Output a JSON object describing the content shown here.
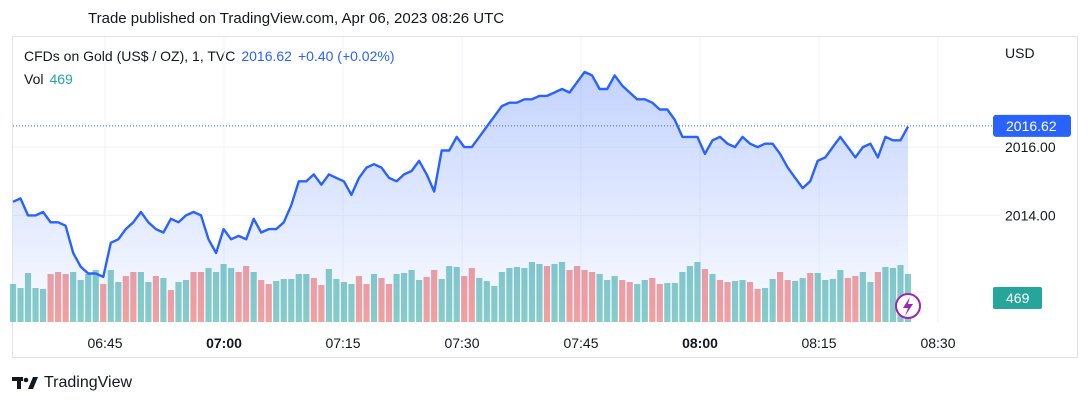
{
  "header": {
    "published": "Trade published on TradingView.com, Apr 06, 2023 08:26 UTC"
  },
  "legend": {
    "symbol": "CFDs on Gold (US$ / OZ), 1, TVC",
    "price": "2016.62",
    "change": "+0.40 (+0.02%)",
    "vol_label": "Vol",
    "vol_value": "469"
  },
  "axis": {
    "currency": "USD",
    "last_price_label": "2016.62",
    "last_volume_label": "469"
  },
  "brand": {
    "name": "TradingView"
  },
  "colors": {
    "line": "#2962ff",
    "vol_up": "#26a69a",
    "vol_down": "#ef5350",
    "price_tag": "#2962ff",
    "vol_tag": "#26a69a"
  },
  "chart_data": {
    "type": "line",
    "title": "CFDs on Gold (US$ / OZ), 1, TVC",
    "x_ticks": [
      {
        "label": "06:45",
        "bold": false
      },
      {
        "label": "07:00",
        "bold": true
      },
      {
        "label": "07:15",
        "bold": false
      },
      {
        "label": "07:30",
        "bold": false
      },
      {
        "label": "07:45",
        "bold": false
      },
      {
        "label": "08:00",
        "bold": true
      },
      {
        "label": "08:15",
        "bold": false
      },
      {
        "label": "08:30",
        "bold": false
      }
    ],
    "y_ticks": [
      "2016.00",
      "2014.00"
    ],
    "ylim": [
      2011.7,
      2018.55
    ],
    "x_start": "06:35",
    "x_end": "08:33",
    "series": [
      {
        "price": [
          2014.4,
          2014.5,
          2014.0,
          2014.0,
          2014.1,
          2013.8,
          2013.8,
          2013.7,
          2012.9,
          2012.5,
          2012.3,
          2012.3,
          2012.2,
          2013.2,
          2013.3,
          2013.6,
          2013.8,
          2014.1,
          2013.8,
          2013.6,
          2013.5,
          2013.9,
          2013.8,
          2014.0,
          2014.1,
          2014.0,
          2013.3,
          2012.9,
          2013.6,
          2013.3,
          2013.4,
          2013.3,
          2013.9,
          2013.5,
          2013.6,
          2013.6,
          2013.8,
          2014.3,
          2015.0,
          2015.0,
          2015.2,
          2014.9,
          2015.2,
          2015.1,
          2015.0,
          2014.6,
          2015.1,
          2015.4,
          2015.5,
          2015.4,
          2015.1,
          2015.0,
          2015.2,
          2015.3,
          2015.6,
          2015.2,
          2014.7,
          2015.9,
          2015.9,
          2016.3,
          2016.0,
          2016.0,
          2016.3,
          2016.6,
          2016.9,
          2017.2,
          2017.3,
          2017.3,
          2017.4,
          2017.4,
          2017.5,
          2017.5,
          2017.6,
          2017.7,
          2017.6,
          2017.9,
          2018.2,
          2018.1,
          2017.7,
          2017.7,
          2018.1,
          2017.8,
          2017.6,
          2017.4,
          2017.4,
          2017.3,
          2017.1,
          2017.1,
          2016.8,
          2016.3,
          2016.3,
          2016.3,
          2015.8,
          2016.2,
          2016.3,
          2016.1,
          2016.0,
          2016.3,
          2016.1,
          2016.0,
          2016.1,
          2016.1,
          2015.8,
          2015.4,
          2015.1,
          2014.8,
          2015.0,
          2015.6,
          2015.7,
          2016.0,
          2016.3,
          2016.0,
          2015.7,
          2016.0,
          2016.1,
          2015.7,
          2016.3,
          2016.2,
          2016.2,
          2016.6
        ],
        "vol_high": [
          38,
          34,
          49,
          34,
          33,
          48,
          50,
          48,
          50,
          42,
          48,
          52,
          38,
          52,
          40,
          46,
          50,
          50,
          40,
          46,
          44,
          32,
          40,
          42,
          50,
          50,
          54,
          50,
          58,
          54,
          50,
          56,
          50,
          42,
          38,
          41,
          43,
          43,
          48,
          48,
          44,
          37,
          53,
          43,
          40,
          38,
          46,
          38,
          48,
          44,
          38,
          48,
          49,
          52,
          42,
          45,
          52,
          43,
          56,
          55,
          46,
          54,
          44,
          41,
          36,
          50,
          54,
          55,
          54,
          60,
          58,
          56,
          58,
          60,
          52,
          56,
          52,
          50,
          48,
          42,
          46,
          42,
          40,
          38,
          42,
          44,
          38,
          39,
          39,
          50,
          56,
          60,
          53,
          48,
          42,
          40,
          41,
          42,
          40,
          33,
          34,
          43,
          50,
          42,
          41,
          44,
          49,
          49,
          42,
          43,
          52,
          44,
          46,
          50,
          40,
          50,
          55,
          54,
          57,
          48
        ],
        "vol_up": [
          1,
          1,
          1,
          1,
          1,
          0,
          0,
          0,
          1,
          1,
          1,
          1,
          0,
          1,
          1,
          0,
          0,
          1,
          1,
          0,
          1,
          0,
          1,
          1,
          0,
          0,
          1,
          1,
          1,
          1,
          0,
          0,
          1,
          0,
          0,
          1,
          1,
          1,
          1,
          1,
          0,
          0,
          1,
          1,
          1,
          1,
          0,
          0,
          1,
          0,
          0,
          1,
          1,
          1,
          1,
          0,
          0,
          1,
          1,
          1,
          0,
          0,
          1,
          1,
          1,
          1,
          1,
          1,
          1,
          1,
          1,
          0,
          1,
          1,
          0,
          0,
          0,
          0,
          1,
          1,
          1,
          0,
          0,
          1,
          1,
          0,
          0,
          1,
          1,
          1,
          1,
          1,
          0,
          1,
          0,
          0,
          1,
          1,
          0,
          0,
          1,
          1,
          0,
          0,
          1,
          1,
          0,
          1,
          1,
          1,
          1,
          0,
          0,
          1,
          1,
          0,
          1,
          1,
          1,
          1
        ],
        "vol_tail": [
          0,
          0,
          0,
          0,
          0,
          0,
          0,
          0,
          0,
          0,
          0,
          0,
          0,
          0,
          0,
          0,
          0,
          0,
          0,
          0,
          0,
          0,
          0,
          0,
          0,
          0,
          0,
          0,
          0,
          0,
          0,
          0,
          0,
          0,
          0,
          0,
          0,
          0,
          0,
          0,
          0,
          0,
          0,
          0,
          0,
          0,
          0,
          0,
          0,
          0,
          0,
          0,
          0,
          0,
          0,
          0,
          0,
          0,
          0,
          0,
          0,
          0,
          0,
          0,
          0,
          0,
          0,
          0,
          0,
          0,
          0,
          0,
          0,
          0,
          0,
          0,
          0,
          0,
          0,
          0,
          0,
          0,
          0,
          0,
          0,
          0,
          0,
          0,
          0,
          0,
          0,
          0,
          0,
          0,
          0,
          0,
          0,
          0,
          0,
          0,
          0,
          0,
          0,
          0,
          0,
          0,
          0,
          0,
          0,
          0,
          0,
          0,
          0,
          0,
          0,
          0,
          0,
          0,
          0,
          0
        ]
      }
    ]
  }
}
